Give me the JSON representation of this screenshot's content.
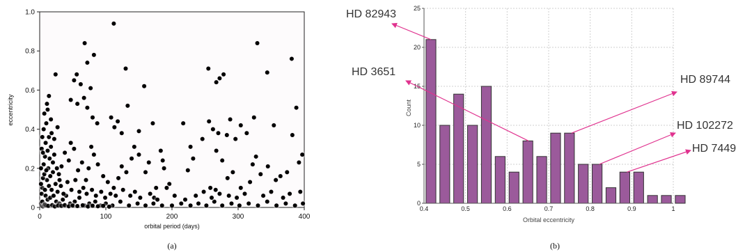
{
  "figure": {
    "caption_a": "(a)",
    "caption_b": "(b)"
  },
  "chart_data": [
    {
      "type": "scatter",
      "xlabel": "orbital period (days)",
      "ylabel": "eccentricity",
      "xlim": [
        0,
        400
      ],
      "ylim": [
        0,
        1.0
      ],
      "x_ticks": [
        "0",
        "100",
        "200",
        "300",
        "400"
      ],
      "y_ticks": [
        "0",
        "0.2",
        "0.4",
        "0.6",
        "0.8",
        "1.0"
      ],
      "grid": false,
      "points": [
        [
          112,
          0.94
        ],
        [
          68,
          0.84
        ],
        [
          82,
          0.78
        ],
        [
          72,
          0.74
        ],
        [
          329,
          0.84
        ],
        [
          381,
          0.76
        ],
        [
          130,
          0.71
        ],
        [
          255,
          0.71
        ],
        [
          278,
          0.68
        ],
        [
          272,
          0.66
        ],
        [
          267,
          0.64
        ],
        [
          344,
          0.69
        ],
        [
          24,
          0.68
        ],
        [
          56,
          0.68
        ],
        [
          52,
          0.65
        ],
        [
          62,
          0.63
        ],
        [
          77,
          0.61
        ],
        [
          158,
          0.62
        ],
        [
          14,
          0.57
        ],
        [
          12,
          0.5
        ],
        [
          7,
          0.48
        ],
        [
          17,
          0.45
        ],
        [
          27,
          0.41
        ],
        [
          47,
          0.55
        ],
        [
          57,
          0.53
        ],
        [
          67,
          0.56
        ],
        [
          72,
          0.51
        ],
        [
          80,
          0.46
        ],
        [
          87,
          0.43
        ],
        [
          108,
          0.46
        ],
        [
          118,
          0.44
        ],
        [
          113,
          0.41
        ],
        [
          124,
          0.38
        ],
        [
          133,
          0.52
        ],
        [
          171,
          0.43
        ],
        [
          150,
          0.39
        ],
        [
          256,
          0.44
        ],
        [
          262,
          0.4
        ],
        [
          288,
          0.45
        ],
        [
          304,
          0.42
        ],
        [
          270,
          0.38
        ],
        [
          246,
          0.35
        ],
        [
          283,
          0.37
        ],
        [
          296,
          0.35
        ],
        [
          313,
          0.38
        ],
        [
          324,
          0.46
        ],
        [
          354,
          0.42
        ],
        [
          382,
          0.37
        ],
        [
          388,
          0.51
        ],
        [
          397,
          0.27
        ],
        [
          392,
          0.23
        ],
        [
          374,
          0.18
        ],
        [
          357,
          0.14
        ],
        [
          364,
          0.16
        ],
        [
          345,
          0.21
        ],
        [
          334,
          0.17
        ],
        [
          327,
          0.26
        ],
        [
          322,
          0.22
        ],
        [
          318,
          0.13
        ],
        [
          304,
          0.1
        ],
        [
          292,
          0.18
        ],
        [
          284,
          0.15
        ],
        [
          266,
          0.09
        ],
        [
          258,
          0.1
        ],
        [
          276,
          0.24
        ],
        [
          267,
          0.29
        ],
        [
          228,
          0.31
        ],
        [
          232,
          0.25
        ],
        [
          224,
          0.19
        ],
        [
          217,
          0.43
        ],
        [
          183,
          0.29
        ],
        [
          186,
          0.24
        ],
        [
          188,
          0.2
        ],
        [
          196,
          0.12
        ],
        [
          192,
          0.1
        ],
        [
          176,
          0.1
        ],
        [
          173,
          0.05
        ],
        [
          165,
          0.23
        ],
        [
          160,
          0.18
        ],
        [
          150,
          0.27
        ],
        [
          143,
          0.31
        ],
        [
          139,
          0.25
        ],
        [
          131,
          0.18
        ],
        [
          124,
          0.21
        ],
        [
          119,
          0.15
        ],
        [
          112,
          0.1
        ],
        [
          103,
          0.13
        ],
        [
          96,
          0.16
        ],
        [
          88,
          0.22
        ],
        [
          82,
          0.27
        ],
        [
          78,
          0.31
        ],
        [
          74,
          0.2
        ],
        [
          70,
          0.14
        ],
        [
          64,
          0.23
        ],
        [
          58,
          0.19
        ],
        [
          52,
          0.3
        ],
        [
          47,
          0.33
        ],
        [
          44,
          0.24
        ],
        [
          38,
          0.28
        ],
        [
          33,
          0.21
        ],
        [
          30,
          0.14
        ],
        [
          27,
          0.08
        ],
        [
          22,
          0.27
        ],
        [
          20,
          0.18
        ],
        [
          24,
          0.12
        ],
        [
          17,
          0.31
        ],
        [
          15,
          0.25
        ],
        [
          13,
          0.2
        ],
        [
          11,
          0.14
        ],
        [
          9,
          0.33
        ],
        [
          8,
          0.26
        ],
        [
          6,
          0.22
        ],
        [
          5,
          0.15
        ],
        [
          4,
          0.1
        ],
        [
          3,
          0.07
        ],
        [
          6,
          0.4
        ],
        [
          10,
          0.43
        ],
        [
          14,
          0.36
        ],
        [
          18,
          0.38
        ],
        [
          11,
          0.53
        ],
        [
          9,
          0.06
        ],
        [
          12,
          0.04
        ],
        [
          16,
          0.05
        ],
        [
          21,
          0.06
        ],
        [
          25,
          0.03
        ],
        [
          30,
          0.02
        ],
        [
          35,
          0.04
        ],
        [
          40,
          0.06
        ],
        [
          46,
          0.02
        ],
        [
          53,
          0.03
        ],
        [
          60,
          0.05
        ],
        [
          68,
          0.01
        ],
        [
          75,
          0.02
        ],
        [
          84,
          0.03
        ],
        [
          92,
          0.01
        ],
        [
          100,
          0.02
        ],
        [
          110,
          0.01
        ],
        [
          122,
          0.03
        ],
        [
          135,
          0.01
        ],
        [
          148,
          0.02
        ],
        [
          160,
          0.01
        ],
        [
          172,
          0.02
        ],
        [
          185,
          0.01
        ],
        [
          200,
          0.01
        ],
        [
          214,
          0.02
        ],
        [
          228,
          0.01
        ],
        [
          240,
          0.02
        ],
        [
          252,
          0.01
        ],
        [
          264,
          0.03
        ],
        [
          276,
          0.01
        ],
        [
          290,
          0.02
        ],
        [
          302,
          0.01
        ],
        [
          316,
          0.02
        ],
        [
          330,
          0.01
        ],
        [
          344,
          0.03
        ],
        [
          358,
          0.01
        ],
        [
          372,
          0.02
        ],
        [
          386,
          0.01
        ],
        [
          398,
          0.02
        ],
        [
          2,
          0.02
        ],
        [
          3,
          0.01
        ],
        [
          4,
          0.03
        ],
        [
          5,
          0.005
        ],
        [
          7,
          0.01
        ],
        [
          8,
          0.015
        ],
        [
          10,
          0.01
        ],
        [
          13,
          0.008
        ],
        [
          19,
          0.012
        ],
        [
          23,
          0.005
        ],
        [
          28,
          0.01
        ],
        [
          33,
          0.008
        ],
        [
          38,
          0.012
        ],
        [
          44,
          0.006
        ],
        [
          50,
          0.01
        ],
        [
          57,
          0.007
        ],
        [
          65,
          0.011
        ],
        [
          73,
          0.005
        ],
        [
          80,
          0.009
        ],
        [
          88,
          0.006
        ],
        [
          96,
          0.008
        ],
        [
          105,
          0.004
        ],
        [
          2,
          0.2
        ],
        [
          2,
          0.12
        ],
        [
          3,
          0.3
        ],
        [
          4,
          0.36
        ],
        [
          5,
          0.28
        ],
        [
          7,
          0.17
        ],
        [
          8,
          0.09
        ],
        [
          10,
          0.19
        ],
        [
          12,
          0.29
        ],
        [
          14,
          0.11
        ],
        [
          16,
          0.16
        ],
        [
          18,
          0.09
        ],
        [
          20,
          0.23
        ],
        [
          22,
          0.35
        ],
        [
          26,
          0.2
        ],
        [
          29,
          0.17
        ],
        [
          32,
          0.11
        ],
        [
          36,
          0.07
        ],
        [
          42,
          0.13
        ],
        [
          48,
          0.09
        ],
        [
          54,
          0.14
        ],
        [
          60,
          0.08
        ],
        [
          66,
          0.1
        ],
        [
          71,
          0.07
        ],
        [
          79,
          0.09
        ],
        [
          85,
          0.06
        ],
        [
          93,
          0.08
        ],
        [
          99,
          0.05
        ],
        [
          107,
          0.07
        ],
        [
          115,
          0.06
        ],
        [
          126,
          0.09
        ],
        [
          137,
          0.06
        ],
        [
          144,
          0.08
        ],
        [
          152,
          0.05
        ],
        [
          167,
          0.07
        ],
        [
          178,
          0.04
        ],
        [
          204,
          0.06
        ],
        [
          220,
          0.04
        ],
        [
          236,
          0.06
        ],
        [
          248,
          0.08
        ],
        [
          260,
          0.05
        ],
        [
          272,
          0.07
        ],
        [
          286,
          0.06
        ],
        [
          298,
          0.05
        ],
        [
          310,
          0.07
        ],
        [
          338,
          0.06
        ],
        [
          350,
          0.08
        ],
        [
          368,
          0.05
        ],
        [
          378,
          0.07
        ],
        [
          394,
          0.08
        ]
      ]
    },
    {
      "type": "bar",
      "xlabel": "Orbital eccentricity",
      "ylabel": "Count",
      "xlim": [
        0.4,
        1.0
      ],
      "ylim": [
        0,
        25
      ],
      "x_ticks": [
        "0.4",
        "0.5",
        "0.6",
        "0.7",
        "0.8",
        "0.9",
        "1"
      ],
      "y_ticks": [
        "0",
        "5",
        "10",
        "15",
        "20",
        "25"
      ],
      "grid": true,
      "bar_color": "#9B5A9B",
      "bin_width": 0.033,
      "bins": [
        {
          "x": 0.4167,
          "count": 21
        },
        {
          "x": 0.45,
          "count": 10
        },
        {
          "x": 0.4833,
          "count": 14
        },
        {
          "x": 0.5167,
          "count": 10
        },
        {
          "x": 0.55,
          "count": 15
        },
        {
          "x": 0.5833,
          "count": 6
        },
        {
          "x": 0.6167,
          "count": 4
        },
        {
          "x": 0.65,
          "count": 8
        },
        {
          "x": 0.6833,
          "count": 6
        },
        {
          "x": 0.7167,
          "count": 9
        },
        {
          "x": 0.75,
          "count": 9
        },
        {
          "x": 0.7833,
          "count": 5
        },
        {
          "x": 0.8167,
          "count": 5
        },
        {
          "x": 0.85,
          "count": 2
        },
        {
          "x": 0.8833,
          "count": 4
        },
        {
          "x": 0.9167,
          "count": 4
        },
        {
          "x": 0.95,
          "count": 1
        },
        {
          "x": 0.9833,
          "count": 1
        },
        {
          "x": 1.0167,
          "count": 1
        }
      ],
      "annotation_color": "#E0338F",
      "annotations": [
        {
          "label": "HD 82943",
          "bin": 0
        },
        {
          "label": "HD 3651",
          "bin": 7
        },
        {
          "label": "HD 89744",
          "bin": 10
        },
        {
          "label": "HD 102272",
          "bin": 12
        },
        {
          "label": "HD 7449",
          "bin": 14
        }
      ]
    }
  ]
}
